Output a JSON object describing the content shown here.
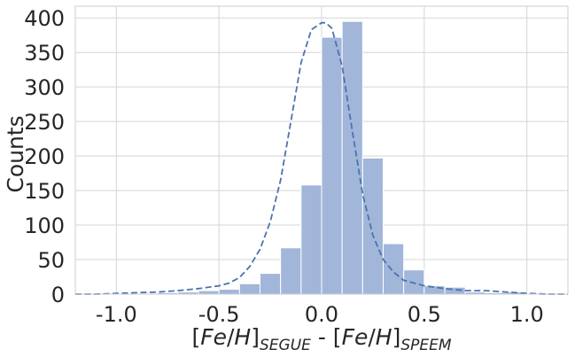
{
  "chart_data": {
    "type": "bar",
    "title": "",
    "ylabel": "Counts",
    "xlabel_parts": {
      "open1": "[",
      "fe1": "Fe",
      "slash1": "/",
      "h1": "H",
      "close1": "]",
      "sub1": "SEGUE",
      "sep": " - ",
      "open2": "[",
      "fe2": "Fe",
      "slash2": "/",
      "h2": "H",
      "close2": "]",
      "sub2": "SPEEM"
    },
    "xlim": [
      -1.2,
      1.2
    ],
    "ylim": [
      0,
      417
    ],
    "grid": true,
    "bar_color": "#a1b6d9",
    "bar_edge_color": "#ffffff",
    "curve_color": "#4c72b0",
    "bin_width": 0.1,
    "bins": [
      {
        "x0": -1.2,
        "count": 0
      },
      {
        "x0": -1.1,
        "count": 0
      },
      {
        "x0": -1.0,
        "count": 0
      },
      {
        "x0": -0.9,
        "count": 1
      },
      {
        "x0": -0.8,
        "count": 2
      },
      {
        "x0": -0.7,
        "count": 3
      },
      {
        "x0": -0.6,
        "count": 5
      },
      {
        "x0": -0.5,
        "count": 7
      },
      {
        "x0": -0.4,
        "count": 15
      },
      {
        "x0": -0.3,
        "count": 30
      },
      {
        "x0": -0.2,
        "count": 67
      },
      {
        "x0": -0.1,
        "count": 158
      },
      {
        "x0": 0.0,
        "count": 372
      },
      {
        "x0": 0.1,
        "count": 395
      },
      {
        "x0": 0.2,
        "count": 197
      },
      {
        "x0": 0.3,
        "count": 73
      },
      {
        "x0": 0.4,
        "count": 35
      },
      {
        "x0": 0.5,
        "count": 12
      },
      {
        "x0": 0.6,
        "count": 10
      },
      {
        "x0": 0.7,
        "count": 3
      },
      {
        "x0": 0.8,
        "count": 2
      },
      {
        "x0": 0.9,
        "count": 3
      },
      {
        "x0": 1.0,
        "count": 1
      },
      {
        "x0": 1.1,
        "count": 0
      }
    ],
    "kde_x": [
      -1.2,
      -1.1,
      -1.0,
      -0.9,
      -0.8,
      -0.7,
      -0.6,
      -0.5,
      -0.45,
      -0.4,
      -0.35,
      -0.3,
      -0.25,
      -0.2,
      -0.15,
      -0.1,
      -0.05,
      0.0,
      0.02,
      0.05,
      0.1,
      0.15,
      0.2,
      0.25,
      0.3,
      0.35,
      0.4,
      0.5,
      0.6,
      0.7,
      0.8,
      0.85,
      0.9,
      1.0,
      1.1,
      1.2
    ],
    "kde_y": [
      0,
      0,
      1,
      2,
      3,
      5,
      8,
      12,
      16,
      24,
      40,
      65,
      105,
      165,
      250,
      335,
      383,
      393,
      393,
      385,
      330,
      235,
      145,
      85,
      50,
      32,
      20,
      12,
      8,
      5,
      5,
      4,
      3,
      1,
      0,
      0
    ],
    "x_ticks": [
      {
        "value": -1.0,
        "label": "-1.0"
      },
      {
        "value": -0.5,
        "label": "-0.5"
      },
      {
        "value": 0.0,
        "label": "0.0"
      },
      {
        "value": 0.5,
        "label": "0.5"
      },
      {
        "value": 1.0,
        "label": "1.0"
      }
    ],
    "y_ticks": [
      {
        "value": 0,
        "label": "0"
      },
      {
        "value": 50,
        "label": "50"
      },
      {
        "value": 100,
        "label": "100"
      },
      {
        "value": 150,
        "label": "150"
      },
      {
        "value": 200,
        "label": "200"
      },
      {
        "value": 250,
        "label": "250"
      },
      {
        "value": 300,
        "label": "300"
      },
      {
        "value": 350,
        "label": "350"
      },
      {
        "value": 400,
        "label": "400"
      }
    ]
  }
}
